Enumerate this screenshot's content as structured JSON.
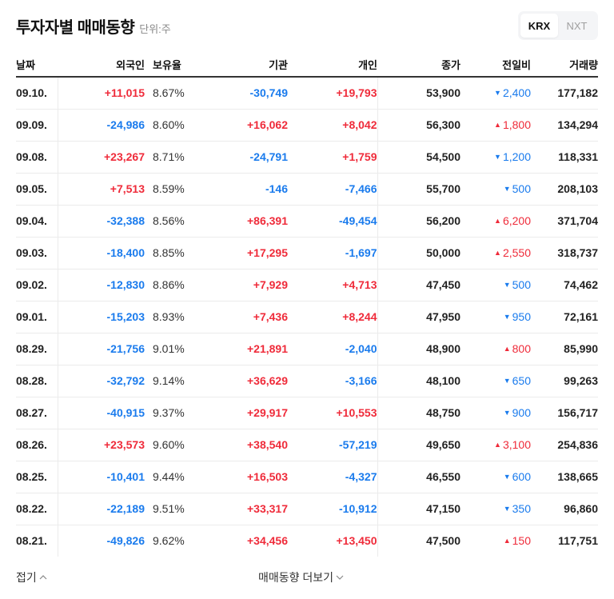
{
  "header": {
    "title": "투자자별 매매동향",
    "unit": "단위:주"
  },
  "market_toggle": {
    "options": [
      {
        "label": "KRX",
        "active": true
      },
      {
        "label": "NXT",
        "active": false
      }
    ]
  },
  "colors": {
    "up": "#ef2b3a",
    "down": "#1a7bed",
    "text": "#111111",
    "border": "#ebebeb",
    "header_border": "#333333"
  },
  "table": {
    "columns": [
      "날짜",
      "외국인",
      "보유율",
      "기관",
      "개인",
      "종가",
      "전일비",
      "거래량"
    ],
    "rows": [
      {
        "date": "09.10.",
        "foreign": "+11,015",
        "foreign_dir": "up",
        "holding": "8.67%",
        "institution": "-30,749",
        "institution_dir": "down",
        "individual": "+19,793",
        "individual_dir": "up",
        "close": "53,900",
        "change": "2,400",
        "change_dir": "down",
        "volume": "177,182"
      },
      {
        "date": "09.09.",
        "foreign": "-24,986",
        "foreign_dir": "down",
        "holding": "8.60%",
        "institution": "+16,062",
        "institution_dir": "up",
        "individual": "+8,042",
        "individual_dir": "up",
        "close": "56,300",
        "change": "1,800",
        "change_dir": "up",
        "volume": "134,294"
      },
      {
        "date": "09.08.",
        "foreign": "+23,267",
        "foreign_dir": "up",
        "holding": "8.71%",
        "institution": "-24,791",
        "institution_dir": "down",
        "individual": "+1,759",
        "individual_dir": "up",
        "close": "54,500",
        "change": "1,200",
        "change_dir": "down",
        "volume": "118,331"
      },
      {
        "date": "09.05.",
        "foreign": "+7,513",
        "foreign_dir": "up",
        "holding": "8.59%",
        "institution": "-146",
        "institution_dir": "down",
        "individual": "-7,466",
        "individual_dir": "down",
        "close": "55,700",
        "change": "500",
        "change_dir": "down",
        "volume": "208,103"
      },
      {
        "date": "09.04.",
        "foreign": "-32,388",
        "foreign_dir": "down",
        "holding": "8.56%",
        "institution": "+86,391",
        "institution_dir": "up",
        "individual": "-49,454",
        "individual_dir": "down",
        "close": "56,200",
        "change": "6,200",
        "change_dir": "up",
        "volume": "371,704"
      },
      {
        "date": "09.03.",
        "foreign": "-18,400",
        "foreign_dir": "down",
        "holding": "8.85%",
        "institution": "+17,295",
        "institution_dir": "up",
        "individual": "-1,697",
        "individual_dir": "down",
        "close": "50,000",
        "change": "2,550",
        "change_dir": "up",
        "volume": "318,737"
      },
      {
        "date": "09.02.",
        "foreign": "-12,830",
        "foreign_dir": "down",
        "holding": "8.86%",
        "institution": "+7,929",
        "institution_dir": "up",
        "individual": "+4,713",
        "individual_dir": "up",
        "close": "47,450",
        "change": "500",
        "change_dir": "down",
        "volume": "74,462"
      },
      {
        "date": "09.01.",
        "foreign": "-15,203",
        "foreign_dir": "down",
        "holding": "8.93%",
        "institution": "+7,436",
        "institution_dir": "up",
        "individual": "+8,244",
        "individual_dir": "up",
        "close": "47,950",
        "change": "950",
        "change_dir": "down",
        "volume": "72,161"
      },
      {
        "date": "08.29.",
        "foreign": "-21,756",
        "foreign_dir": "down",
        "holding": "9.01%",
        "institution": "+21,891",
        "institution_dir": "up",
        "individual": "-2,040",
        "individual_dir": "down",
        "close": "48,900",
        "change": "800",
        "change_dir": "up",
        "volume": "85,990"
      },
      {
        "date": "08.28.",
        "foreign": "-32,792",
        "foreign_dir": "down",
        "holding": "9.14%",
        "institution": "+36,629",
        "institution_dir": "up",
        "individual": "-3,166",
        "individual_dir": "down",
        "close": "48,100",
        "change": "650",
        "change_dir": "down",
        "volume": "99,263"
      },
      {
        "date": "08.27.",
        "foreign": "-40,915",
        "foreign_dir": "down",
        "holding": "9.37%",
        "institution": "+29,917",
        "institution_dir": "up",
        "individual": "+10,553",
        "individual_dir": "up",
        "close": "48,750",
        "change": "900",
        "change_dir": "down",
        "volume": "156,717"
      },
      {
        "date": "08.26.",
        "foreign": "+23,573",
        "foreign_dir": "up",
        "holding": "9.60%",
        "institution": "+38,540",
        "institution_dir": "up",
        "individual": "-57,219",
        "individual_dir": "down",
        "close": "49,650",
        "change": "3,100",
        "change_dir": "up",
        "volume": "254,836"
      },
      {
        "date": "08.25.",
        "foreign": "-10,401",
        "foreign_dir": "down",
        "holding": "9.44%",
        "institution": "+16,503",
        "institution_dir": "up",
        "individual": "-4,327",
        "individual_dir": "down",
        "close": "46,550",
        "change": "600",
        "change_dir": "down",
        "volume": "138,665"
      },
      {
        "date": "08.22.",
        "foreign": "-22,189",
        "foreign_dir": "down",
        "holding": "9.51%",
        "institution": "+33,317",
        "institution_dir": "up",
        "individual": "-10,912",
        "individual_dir": "down",
        "close": "47,150",
        "change": "350",
        "change_dir": "down",
        "volume": "96,860"
      },
      {
        "date": "08.21.",
        "foreign": "-49,826",
        "foreign_dir": "down",
        "holding": "9.62%",
        "institution": "+34,456",
        "institution_dir": "up",
        "individual": "+13,450",
        "individual_dir": "up",
        "close": "47,500",
        "change": "150",
        "change_dir": "up",
        "volume": "117,751"
      }
    ]
  },
  "footer": {
    "fold_label": "접기",
    "more_label": "매매동향 더보기"
  },
  "icons": {
    "up_triangle": "▲",
    "down_triangle": "▼"
  }
}
